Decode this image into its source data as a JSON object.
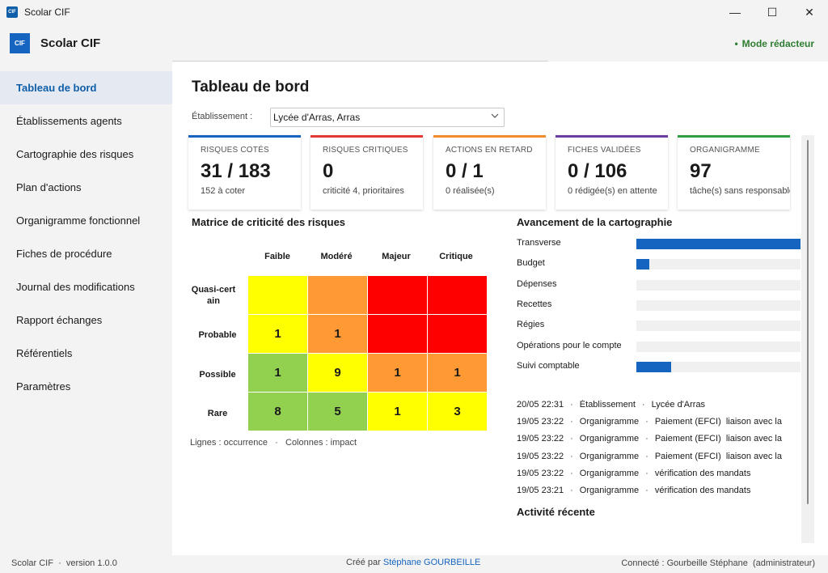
{
  "window": {
    "title": "Scolar CIF",
    "icon_text": "CIF",
    "minimize": "—",
    "maximize": "☐",
    "close": "✕"
  },
  "header": {
    "logo_text": "CIF",
    "app_name": "Scolar CIF",
    "mode_dot": "•",
    "mode": "Mode rédacteur",
    "mode_color": "#2e7d32"
  },
  "sidebar": {
    "items": [
      {
        "label": "Tableau de bord"
      },
      {
        "label": "Établissements  agents"
      },
      {
        "label": "Cartographie des risques"
      },
      {
        "label": "Plan d'actions"
      },
      {
        "label": "Organigramme fonctionnel"
      },
      {
        "label": "Fiches de procédure"
      },
      {
        "label": "Journal des modifications"
      },
      {
        "label": "Rapport  échanges"
      },
      {
        "label": "Référentiels"
      },
      {
        "label": "Paramètres"
      }
    ]
  },
  "main": {
    "title": "Tableau de bord",
    "establishment_label": "Établissement :",
    "establishment_value": "Lycée d'Arras, Arras",
    "dropdown_icon": "chevron-down-icon"
  },
  "cards": [
    {
      "label": "RISQUES COTÉS",
      "value": "31 / 183",
      "sub": "152 à coter",
      "color": "#1565c0"
    },
    {
      "label": "RISQUES CRITIQUES",
      "value": "0",
      "sub": "criticité 4, prioritaires",
      "color": "#e53935"
    },
    {
      "label": "ACTIONS EN RETARD",
      "value": "0 / 1",
      "sub": "0 réalisée(s)",
      "color": "#f08c2a"
    },
    {
      "label": "FICHES VALIDÉES",
      "value": "0 / 106",
      "sub": "0 rédigée(s) en attente",
      "color": "#6a3ea1"
    },
    {
      "label": "ORGANIGRAMME",
      "value": "97",
      "sub": "tâche(s) sans responsable",
      "color": "#2e9e3e"
    }
  ],
  "matrix": {
    "title": "Matrice de criticité des risques",
    "columns": [
      "Faible",
      "Modéré",
      "Majeur",
      "Critique"
    ],
    "rows": [
      {
        "label": "Quasi-certain",
        "cells": [
          "",
          "",
          "",
          ""
        ],
        "colors": [
          "#ffff00",
          "#ff9933",
          "#ff0000",
          "#ff0000"
        ]
      },
      {
        "label": "Probable",
        "cells": [
          "1",
          "1",
          "",
          ""
        ],
        "colors": [
          "#ffff00",
          "#ff9933",
          "#ff0000",
          "#ff0000"
        ]
      },
      {
        "label": "Possible",
        "cells": [
          "1",
          "9",
          "1",
          "1"
        ],
        "colors": [
          "#92d050",
          "#ffff00",
          "#ff9933",
          "#ff9933"
        ]
      },
      {
        "label": "Rare",
        "cells": [
          "8",
          "5",
          "1",
          "3"
        ],
        "colors": [
          "#92d050",
          "#92d050",
          "#ffff00",
          "#ffff00"
        ]
      }
    ],
    "note": "Lignes : occurrence   ·   Colonnes : impact"
  },
  "progress": {
    "title": "Avancement de la cartographie",
    "items": [
      {
        "label": "Transverse",
        "fraction": 1.0
      },
      {
        "label": "Budget",
        "fraction": 0.08
      },
      {
        "label": "Dépenses",
        "fraction": 0
      },
      {
        "label": "Recettes",
        "fraction": 0
      },
      {
        "label": "Régies",
        "fraction": 0
      },
      {
        "label": "Opérations pour le compte",
        "fraction": 0
      },
      {
        "label": "Suivi comptable",
        "fraction": 0.21
      }
    ],
    "bar_color": "#1565c0"
  },
  "activity": {
    "title": "Activité récente",
    "items": [
      {
        "time": "20/05 22:31",
        "type": "Établissement",
        "detail": "Lycée d'Arras"
      },
      {
        "time": "19/05 23:22",
        "type": "Organigramme",
        "detail": "Paiement (EFCI)  liaison avec la"
      },
      {
        "time": "19/05 23:22",
        "type": "Organigramme",
        "detail": "Paiement (EFCI)  liaison avec la"
      },
      {
        "time": "19/05 23:22",
        "type": "Organigramme",
        "detail": "Paiement (EFCI)  liaison avec la"
      },
      {
        "time": "19/05 23:22",
        "type": "Organigramme",
        "detail": "vérification des mandats"
      },
      {
        "time": "19/05 23:21",
        "type": "Organigramme",
        "detail": "vérification des mandats"
      }
    ],
    "separator": "·"
  },
  "footer": {
    "left": "Scolar CIF  ·  version 1.0.0",
    "center_prefix": "Créé par ",
    "author": "Stéphane GOURBEILLE",
    "right": "Connecté : Gourbeille Stéphane  (administrateur)"
  }
}
